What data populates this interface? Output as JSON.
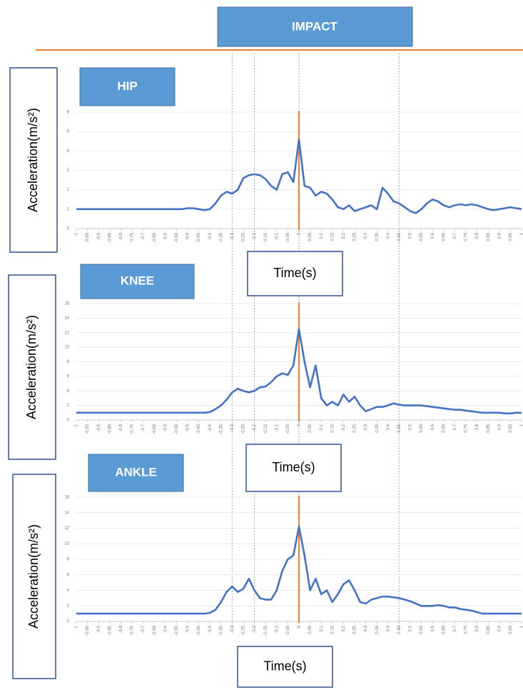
{
  "header": "IMPACT",
  "reference_lines": [
    -0.3,
    -0.2,
    0,
    0.45
  ],
  "chart_data": [
    {
      "type": "line",
      "title": "HIP",
      "ylabel": "Acceleration(m/s²)",
      "xlabel": "Time(s)",
      "color": "#4472c4",
      "impact_x": 0,
      "impact_color": "#ed7d31",
      "x": [
        -1,
        -0.975,
        -0.95,
        -0.925,
        -0.9,
        -0.875,
        -0.85,
        -0.825,
        -0.8,
        -0.775,
        -0.75,
        -0.725,
        -0.7,
        -0.675,
        -0.65,
        -0.625,
        -0.6,
        -0.575,
        -0.55,
        -0.525,
        -0.5,
        -0.475,
        -0.45,
        -0.425,
        -0.4,
        -0.375,
        -0.35,
        -0.325,
        -0.3,
        -0.275,
        -0.25,
        -0.225,
        -0.2,
        -0.175,
        -0.15,
        -0.125,
        -0.1,
        -0.075,
        -0.05,
        -0.025,
        0,
        0.025,
        0.05,
        0.075,
        0.1,
        0.125,
        0.15,
        0.175,
        0.2,
        0.225,
        0.25,
        0.275,
        0.3,
        0.325,
        0.35,
        0.375,
        0.4,
        0.425,
        0.45,
        0.475,
        0.5,
        0.525,
        0.55,
        0.575,
        0.6,
        0.625,
        0.65,
        0.675,
        0.7,
        0.725,
        0.75,
        0.775,
        0.8,
        0.825,
        0.85,
        0.875,
        0.9,
        0.925,
        0.95,
        0.975,
        1
      ],
      "values": [
        1,
        1,
        1,
        1,
        1,
        1,
        1,
        1,
        1,
        1,
        1,
        1,
        1,
        1,
        1,
        1,
        1,
        1,
        1,
        1,
        1.05,
        1.05,
        1.0,
        0.95,
        1.0,
        1.3,
        1.7,
        1.9,
        1.8,
        2.0,
        2.6,
        2.75,
        2.8,
        2.75,
        2.55,
        2.2,
        2.0,
        2.8,
        2.9,
        2.4,
        4.6,
        2.2,
        2.1,
        1.7,
        1.9,
        1.8,
        1.5,
        1.1,
        1.0,
        1.2,
        0.9,
        1.0,
        1.1,
        1.2,
        1.0,
        2.1,
        1.8,
        1.4,
        1.3,
        1.1,
        0.9,
        0.8,
        1.0,
        1.3,
        1.5,
        1.4,
        1.2,
        1.1,
        1.2,
        1.25,
        1.2,
        1.25,
        1.2,
        1.1,
        1.0,
        0.95,
        1.0,
        1.05,
        1.1,
        1.05,
        1.0
      ],
      "xlim": [
        -1,
        1
      ],
      "xticks": [
        -1,
        -0.95,
        -0.9,
        -0.85,
        -0.8,
        -0.75,
        -0.7,
        -0.65,
        -0.6,
        -0.55,
        -0.5,
        -0.45,
        -0.4,
        -0.35,
        -0.3,
        -0.25,
        -0.2,
        -0.15,
        -0.1,
        -0.05,
        0,
        0.05,
        0.1,
        0.15,
        0.2,
        0.25,
        0.3,
        0.35,
        0.4,
        0.45,
        0.5,
        0.55,
        0.6,
        0.65,
        0.7,
        0.75,
        0.8,
        0.85,
        0.9,
        0.95,
        1
      ],
      "ylim": [
        0,
        6
      ],
      "yticks": [
        0,
        1,
        2,
        3,
        4,
        5,
        6
      ],
      "grid": true
    },
    {
      "type": "line",
      "title": "KNEE",
      "ylabel": "Acceleration(m/s²)",
      "xlabel": "Time(s)",
      "color": "#4472c4",
      "impact_x": 0,
      "impact_color": "#ed7d31",
      "x": [
        -1,
        -0.975,
        -0.95,
        -0.925,
        -0.9,
        -0.875,
        -0.85,
        -0.825,
        -0.8,
        -0.775,
        -0.75,
        -0.725,
        -0.7,
        -0.675,
        -0.65,
        -0.625,
        -0.6,
        -0.575,
        -0.55,
        -0.525,
        -0.5,
        -0.475,
        -0.45,
        -0.425,
        -0.4,
        -0.375,
        -0.35,
        -0.325,
        -0.3,
        -0.275,
        -0.25,
        -0.225,
        -0.2,
        -0.175,
        -0.15,
        -0.125,
        -0.1,
        -0.075,
        -0.05,
        -0.025,
        0,
        0.025,
        0.05,
        0.075,
        0.1,
        0.125,
        0.15,
        0.175,
        0.2,
        0.225,
        0.25,
        0.275,
        0.3,
        0.325,
        0.35,
        0.375,
        0.4,
        0.425,
        0.45,
        0.475,
        0.5,
        0.525,
        0.55,
        0.575,
        0.6,
        0.625,
        0.65,
        0.675,
        0.7,
        0.725,
        0.75,
        0.775,
        0.8,
        0.825,
        0.85,
        0.875,
        0.9,
        0.925,
        0.95,
        0.975,
        1
      ],
      "values": [
        1,
        1,
        1,
        1,
        1,
        1,
        1,
        1,
        1,
        1,
        1,
        1,
        1,
        1,
        1,
        1,
        1,
        1,
        1,
        1,
        1,
        1.0,
        1.0,
        1.0,
        1.1,
        1.5,
        2.0,
        2.8,
        3.8,
        4.3,
        4.0,
        3.8,
        4.0,
        4.5,
        4.6,
        5.2,
        6.0,
        6.4,
        6.2,
        7.5,
        12.5,
        8.0,
        4.5,
        7.5,
        3.0,
        2.0,
        2.5,
        2.0,
        3.5,
        2.5,
        3.2,
        2.0,
        1.2,
        1.5,
        1.8,
        1.8,
        2.0,
        2.3,
        2.1,
        2.0,
        2.0,
        2.0,
        2.0,
        1.9,
        1.8,
        1.7,
        1.6,
        1.5,
        1.4,
        1.4,
        1.3,
        1.2,
        1.1,
        1.0,
        1.0,
        1.0,
        1.0,
        0.9,
        0.9,
        1.0,
        1.0
      ],
      "xlim": [
        -1,
        1
      ],
      "xticks": [
        -1,
        -0.95,
        -0.9,
        -0.85,
        -0.8,
        -0.75,
        -0.7,
        -0.65,
        -0.6,
        -0.55,
        -0.5,
        -0.45,
        -0.4,
        -0.35,
        -0.3,
        -0.25,
        -0.2,
        -0.15,
        -0.1,
        -0.05,
        0,
        0.05,
        0.1,
        0.15,
        0.2,
        0.25,
        0.3,
        0.35,
        0.4,
        0.45,
        0.5,
        0.55,
        0.6,
        0.65,
        0.7,
        0.75,
        0.8,
        0.85,
        0.9,
        0.95,
        1
      ],
      "ylim": [
        0,
        16
      ],
      "yticks": [
        0,
        2,
        4,
        6,
        8,
        10,
        12,
        14,
        16
      ],
      "grid": true
    },
    {
      "type": "line",
      "title": "ANKLE",
      "ylabel": "Acceleration(m/s²)",
      "xlabel": "Time(s)",
      "color": "#4472c4",
      "impact_x": 0,
      "impact_color": "#ed7d31",
      "x": [
        -1,
        -0.975,
        -0.95,
        -0.925,
        -0.9,
        -0.875,
        -0.85,
        -0.825,
        -0.8,
        -0.775,
        -0.75,
        -0.725,
        -0.7,
        -0.675,
        -0.65,
        -0.625,
        -0.6,
        -0.575,
        -0.55,
        -0.525,
        -0.5,
        -0.475,
        -0.45,
        -0.425,
        -0.4,
        -0.375,
        -0.35,
        -0.325,
        -0.3,
        -0.275,
        -0.25,
        -0.225,
        -0.2,
        -0.175,
        -0.15,
        -0.125,
        -0.1,
        -0.075,
        -0.05,
        -0.025,
        0,
        0.025,
        0.05,
        0.075,
        0.1,
        0.125,
        0.15,
        0.175,
        0.2,
        0.225,
        0.25,
        0.275,
        0.3,
        0.325,
        0.35,
        0.375,
        0.4,
        0.425,
        0.45,
        0.475,
        0.5,
        0.525,
        0.55,
        0.575,
        0.6,
        0.625,
        0.65,
        0.675,
        0.7,
        0.725,
        0.75,
        0.775,
        0.8,
        0.825,
        0.85,
        0.875,
        0.9,
        0.925,
        0.95,
        0.975,
        1
      ],
      "values": [
        1,
        1,
        1,
        1,
        1,
        1,
        1,
        1,
        1,
        1,
        1,
        1,
        1,
        1,
        1,
        1,
        1,
        1,
        1,
        1,
        1,
        1.0,
        1.0,
        1.0,
        1.1,
        1.5,
        2.5,
        3.8,
        4.5,
        3.8,
        4.2,
        5.5,
        4.0,
        3.0,
        2.8,
        2.8,
        4.0,
        6.5,
        8.0,
        8.5,
        12.2,
        8.5,
        4.0,
        5.5,
        3.5,
        4.0,
        2.5,
        3.5,
        4.8,
        5.3,
        4.0,
        2.5,
        2.3,
        2.8,
        3.0,
        3.2,
        3.2,
        3.1,
        3.0,
        2.8,
        2.6,
        2.3,
        2.0,
        2.0,
        2.0,
        2.1,
        2.0,
        1.8,
        1.8,
        1.6,
        1.5,
        1.4,
        1.2,
        1.0,
        1.0,
        1.0,
        1.0,
        1.0,
        1.0,
        1.0,
        1.0
      ],
      "xlim": [
        -1,
        1
      ],
      "xticks": [
        -1,
        -0.95,
        -0.9,
        -0.85,
        -0.8,
        -0.75,
        -0.7,
        -0.65,
        -0.6,
        -0.55,
        -0.5,
        -0.45,
        -0.4,
        -0.35,
        -0.3,
        -0.25,
        -0.2,
        -0.15,
        -0.1,
        -0.05,
        0,
        0.05,
        0.1,
        0.15,
        0.2,
        0.25,
        0.3,
        0.35,
        0.4,
        0.45,
        0.5,
        0.55,
        0.6,
        0.65,
        0.7,
        0.75,
        0.8,
        0.85,
        0.9,
        0.95,
        1
      ],
      "ylim": [
        0,
        16
      ],
      "yticks": [
        0,
        2,
        4,
        6,
        8,
        10,
        12,
        14,
        16
      ],
      "grid": true
    }
  ]
}
